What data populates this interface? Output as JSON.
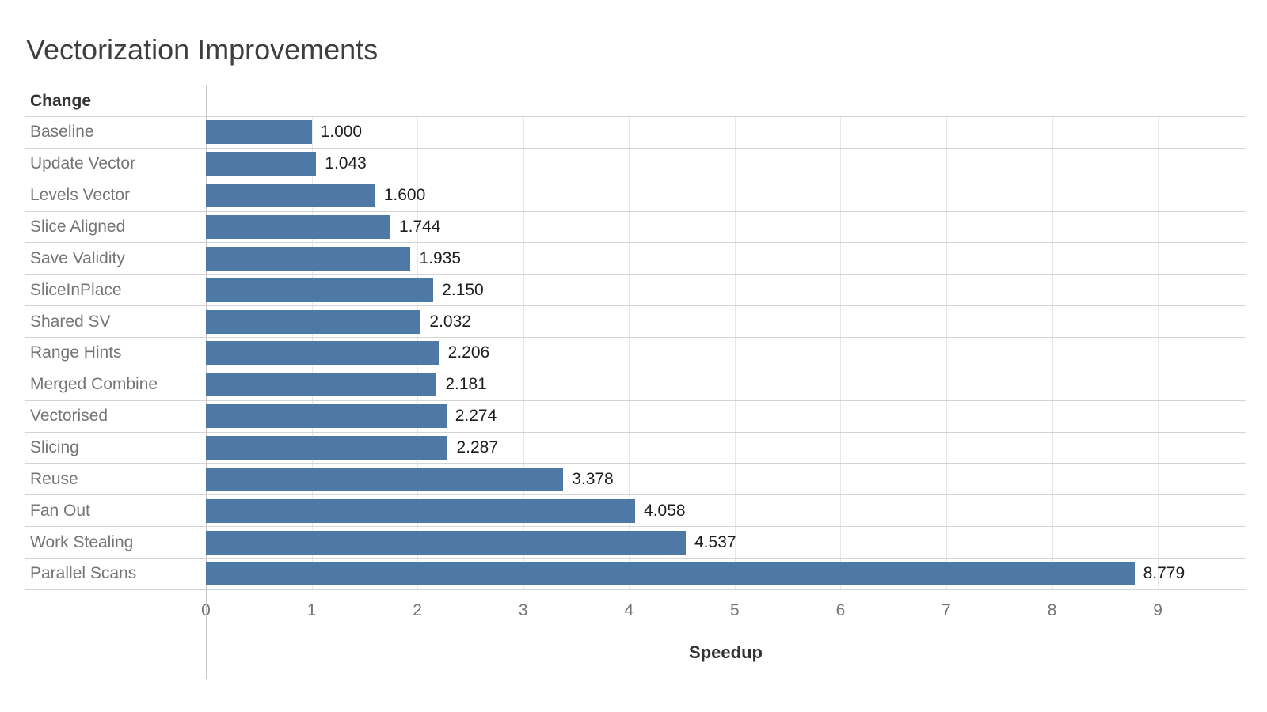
{
  "title": "Vectorization Improvements",
  "chart_data": {
    "type": "bar",
    "orientation": "horizontal",
    "title": "Vectorization Improvements",
    "row_header": "Change",
    "categories": [
      "Baseline",
      "Update Vector",
      "Levels Vector",
      "Slice Aligned",
      "Save Validity",
      "SliceInPlace",
      "Shared SV",
      "Range Hints",
      "Merged Combine",
      "Vectorised",
      "Slicing",
      "Reuse",
      "Fan Out",
      "Work Stealing",
      "Parallel Scans"
    ],
    "values": [
      1.0,
      1.043,
      1.6,
      1.744,
      1.935,
      2.15,
      2.032,
      2.206,
      2.181,
      2.274,
      2.287,
      3.378,
      4.058,
      4.537,
      8.779
    ],
    "value_labels": [
      "1.000",
      "1.043",
      "1.600",
      "1.744",
      "1.935",
      "2.150",
      "2.032",
      "2.206",
      "2.181",
      "2.274",
      "2.287",
      "3.378",
      "4.058",
      "4.537",
      "8.779"
    ],
    "xlabel": "Speedup",
    "x_ticks": [
      0,
      1,
      2,
      3,
      4,
      5,
      6,
      7,
      8,
      9
    ],
    "xlim": [
      0,
      9.83
    ],
    "grid": true,
    "legend": "none",
    "bar_color": "#4e79a7"
  }
}
